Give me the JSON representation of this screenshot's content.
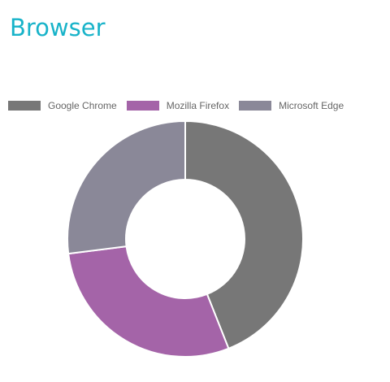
{
  "page": {
    "title": "Browser"
  },
  "chart_data": {
    "type": "pie",
    "variant": "donut",
    "title": "Browser",
    "categories": [
      "Google Chrome",
      "Mozilla Firefox",
      "Microsoft Edge"
    ],
    "values": [
      44,
      29,
      27
    ],
    "colors": [
      "#777777",
      "#a464a8",
      "#8a8898"
    ],
    "legend": "top",
    "slice_border_color": "#ffffff"
  }
}
